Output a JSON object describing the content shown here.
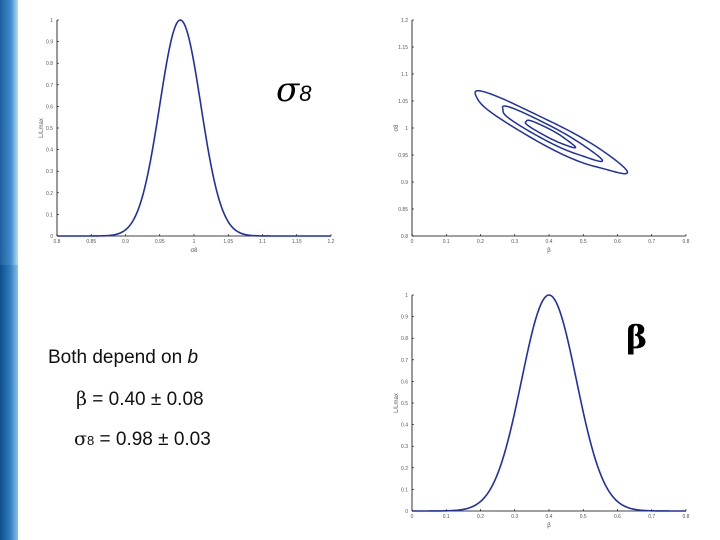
{
  "labels": {
    "sigma_symbol": "σ",
    "sigma_sub": "8",
    "beta_symbol": "β"
  },
  "notes": {
    "line1_text": "Both depend on ",
    "line1_var": "b",
    "beta_line": " = 0.40 ± 0.08",
    "sigma_line": " = 0.98 ± 0.03"
  },
  "colors": {
    "curve": "#1f2fa8",
    "axis": "#000000",
    "tick_text": "#555555"
  },
  "chart_data": [
    {
      "type": "line",
      "xlim": [
        0.8,
        1.2
      ],
      "ylim": [
        0,
        1
      ],
      "xticks": [
        "0.8",
        "0.85",
        "0.9",
        "0.95",
        "1",
        "1.05",
        "1.1",
        "1.15",
        "1.2"
      ],
      "yticks": [
        "0",
        "0.1",
        "0.2",
        "0.3",
        "0.4",
        "0.5",
        "0.6",
        "0.7",
        "0.8",
        "0.9",
        "1"
      ],
      "xlabel": "σ8",
      "ylabel": "L/Lmax",
      "curve": {
        "kind": "gaussian",
        "mean": 0.98,
        "sigma": 0.03
      }
    },
    {
      "type": "line",
      "subtype": "contour",
      "xlim": [
        0,
        0.8
      ],
      "ylim": [
        0.8,
        1.2
      ],
      "xticks": [
        "0",
        "0.1",
        "0.2",
        "0.3",
        "0.4",
        "0.5",
        "0.6",
        "0.7",
        "0.8"
      ],
      "yticks": [
        "0.8",
        "0.85",
        "0.9",
        "0.95",
        "1",
        "1.05",
        "1.1",
        "1.15",
        "1.2"
      ],
      "xlabel": "β",
      "ylabel": "σ8",
      "contours": [
        {
          "center": [
            0.4,
            0.99
          ],
          "semi_major": [
            0.22,
            -0.072
          ],
          "semi_minor": [
            0.012,
            0.021
          ]
        },
        {
          "center": [
            0.4,
            0.99
          ],
          "semi_major": [
            0.145,
            -0.048
          ],
          "semi_minor": [
            0.008,
            0.013
          ]
        },
        {
          "center": [
            0.4,
            0.99
          ],
          "semi_major": [
            0.072,
            -0.024
          ],
          "semi_minor": [
            0.004,
            0.007
          ]
        }
      ]
    },
    {
      "type": "line",
      "xlim": [
        0,
        0.8
      ],
      "ylim": [
        0,
        1
      ],
      "xticks": [
        "0",
        "0.1",
        "0.2",
        "0.3",
        "0.4",
        "0.5",
        "0.6",
        "0.7",
        "0.8"
      ],
      "yticks": [
        "0",
        "0.1",
        "0.2",
        "0.3",
        "0.4",
        "0.5",
        "0.6",
        "0.7",
        "0.8",
        "0.9",
        "1"
      ],
      "xlabel": "β",
      "ylabel": "L/Lmax",
      "curve": {
        "kind": "gaussian",
        "mean": 0.4,
        "sigma": 0.08
      }
    }
  ]
}
